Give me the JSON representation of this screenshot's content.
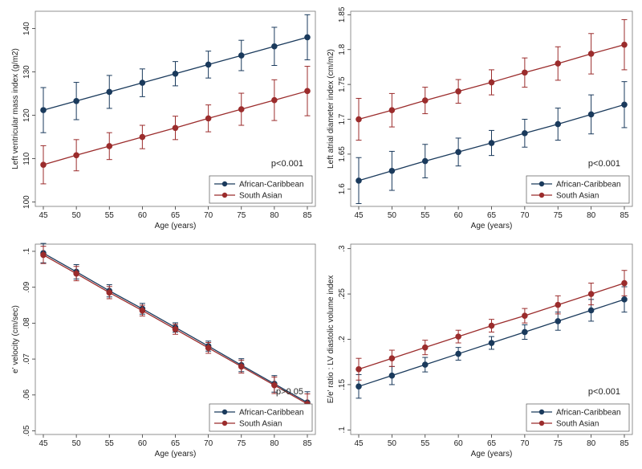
{
  "colors": {
    "ac": "#1a3a5c",
    "sa": "#9b2c2c",
    "background": "#ffffff",
    "axis": "#333333"
  },
  "chart_data": [
    {
      "type": "line",
      "xlabel": "Age (years)",
      "ylabel": "Left ventricular mass index (g/m2)",
      "x": [
        45,
        50,
        55,
        60,
        65,
        70,
        75,
        80,
        85
      ],
      "xticks": [
        "45",
        "50",
        "55",
        "60",
        "65",
        "70",
        "75",
        "80",
        "85"
      ],
      "yticks": [
        100,
        110,
        120,
        130,
        140
      ],
      "ytick_labels": [
        "100",
        "110",
        "120",
        "130",
        "140"
      ],
      "ylim": [
        99,
        144
      ],
      "annotation": "p<0.001",
      "legend": [
        "African-Caribbean",
        "South Asian"
      ],
      "series": [
        {
          "name": "African-Caribbean",
          "values": [
            121.2,
            123.3,
            125.4,
            127.5,
            129.6,
            131.7,
            133.8,
            135.9,
            138.0
          ],
          "lower": [
            116.0,
            119.0,
            121.6,
            124.3,
            126.8,
            128.6,
            130.3,
            131.5,
            132.8
          ],
          "upper": [
            126.4,
            127.6,
            129.2,
            130.7,
            132.4,
            134.8,
            137.3,
            140.3,
            143.2
          ]
        },
        {
          "name": "South Asian",
          "values": [
            108.6,
            110.8,
            112.9,
            115.0,
            117.1,
            119.3,
            121.4,
            123.5,
            125.6
          ],
          "lower": [
            104.2,
            107.2,
            109.8,
            112.3,
            114.4,
            116.2,
            117.7,
            118.8,
            119.9
          ],
          "upper": [
            113.0,
            114.4,
            116.0,
            117.7,
            119.8,
            122.4,
            125.1,
            128.2,
            131.3
          ]
        }
      ]
    },
    {
      "type": "line",
      "xlabel": "Age (years)",
      "ylabel": "Left atrial diameter index (cm/m2)",
      "x": [
        45,
        50,
        55,
        60,
        65,
        70,
        75,
        80,
        85
      ],
      "xticks": [
        "45",
        "50",
        "55",
        "60",
        "65",
        "70",
        "75",
        "80",
        "85"
      ],
      "yticks": [
        1.6,
        1.65,
        1.7,
        1.75,
        1.8,
        1.85
      ],
      "ytick_labels": [
        "1.6",
        "1.65",
        "1.7",
        "1.75",
        "1.8",
        "1.85"
      ],
      "ylim": [
        1.575,
        1.855
      ],
      "annotation": "p<0.001",
      "legend": [
        "African-Caribbean",
        "South Asian"
      ],
      "series": [
        {
          "name": "African-Caribbean",
          "values": [
            1.612,
            1.626,
            1.64,
            1.653,
            1.666,
            1.68,
            1.693,
            1.707,
            1.721
          ],
          "lower": [
            1.579,
            1.598,
            1.616,
            1.633,
            1.648,
            1.66,
            1.67,
            1.679,
            1.688
          ],
          "upper": [
            1.645,
            1.654,
            1.664,
            1.673,
            1.684,
            1.7,
            1.716,
            1.735,
            1.754
          ]
        },
        {
          "name": "South Asian",
          "values": [
            1.7,
            1.713,
            1.727,
            1.74,
            1.753,
            1.767,
            1.78,
            1.794,
            1.807
          ],
          "lower": [
            1.67,
            1.689,
            1.708,
            1.723,
            1.735,
            1.746,
            1.756,
            1.765,
            1.771
          ],
          "upper": [
            1.73,
            1.737,
            1.746,
            1.757,
            1.771,
            1.788,
            1.804,
            1.823,
            1.843
          ]
        }
      ]
    },
    {
      "type": "line",
      "xlabel": "Age (years)",
      "ylabel": "e' velocity (cm/sec)",
      "x": [
        45,
        50,
        55,
        60,
        65,
        70,
        75,
        80,
        85
      ],
      "xticks": [
        "45",
        "50",
        "55",
        "60",
        "65",
        "70",
        "75",
        "80",
        "85"
      ],
      "yticks": [
        0.05,
        0.06,
        0.07,
        0.08,
        0.09,
        0.1
      ],
      "ytick_labels": [
        ".05",
        ".06",
        ".07",
        ".08",
        ".09",
        ".1"
      ],
      "ylim": [
        0.049,
        0.102
      ],
      "annotation": "p>0.05",
      "legend": [
        "African-Caribbean",
        "South Asian"
      ],
      "series": [
        {
          "name": "African-Caribbean",
          "values": [
            0.0995,
            0.0943,
            0.089,
            0.084,
            0.0788,
            0.0736,
            0.0683,
            0.0631,
            0.0579
          ],
          "lower": [
            0.0968,
            0.0923,
            0.0873,
            0.0825,
            0.0775,
            0.0722,
            0.0665,
            0.0608,
            0.0549
          ],
          "upper": [
            0.1022,
            0.0963,
            0.0907,
            0.0855,
            0.0801,
            0.075,
            0.0701,
            0.0654,
            0.0609
          ]
        },
        {
          "name": "South Asian",
          "values": [
            0.099,
            0.0938,
            0.0885,
            0.0835,
            0.0783,
            0.0731,
            0.0679,
            0.0627,
            0.0575
          ],
          "lower": [
            0.0966,
            0.0918,
            0.0868,
            0.082,
            0.0769,
            0.0716,
            0.0661,
            0.0604,
            0.0547
          ],
          "upper": [
            0.1014,
            0.0958,
            0.0902,
            0.085,
            0.0797,
            0.0746,
            0.0697,
            0.065,
            0.0603
          ]
        }
      ]
    },
    {
      "type": "line",
      "xlabel": "Age (years)",
      "ylabel": "E/e' ratio : LV diastolic volume index",
      "x": [
        45,
        50,
        55,
        60,
        65,
        70,
        75,
        80,
        85
      ],
      "xticks": [
        "45",
        "50",
        "55",
        "60",
        "65",
        "70",
        "75",
        "80",
        "85"
      ],
      "yticks": [
        0.1,
        0.15,
        0.2,
        0.25,
        0.3
      ],
      "ytick_labels": [
        ".1",
        ".15",
        ".2",
        ".25",
        ".3"
      ],
      "ylim": [
        0.095,
        0.305
      ],
      "annotation": "p<0.001",
      "legend": [
        "African-Caribbean",
        "South Asian"
      ],
      "series": [
        {
          "name": "African-Caribbean",
          "values": [
            0.148,
            0.16,
            0.172,
            0.184,
            0.196,
            0.208,
            0.22,
            0.232,
            0.244
          ],
          "lower": [
            0.135,
            0.15,
            0.164,
            0.177,
            0.189,
            0.2,
            0.21,
            0.22,
            0.23
          ],
          "upper": [
            0.161,
            0.17,
            0.18,
            0.191,
            0.203,
            0.216,
            0.23,
            0.244,
            0.258
          ]
        },
        {
          "name": "South Asian",
          "values": [
            0.167,
            0.179,
            0.191,
            0.203,
            0.215,
            0.226,
            0.238,
            0.25,
            0.262
          ],
          "lower": [
            0.155,
            0.17,
            0.183,
            0.196,
            0.208,
            0.218,
            0.228,
            0.238,
            0.248
          ],
          "upper": [
            0.179,
            0.188,
            0.199,
            0.21,
            0.222,
            0.234,
            0.248,
            0.262,
            0.276
          ]
        }
      ]
    }
  ]
}
